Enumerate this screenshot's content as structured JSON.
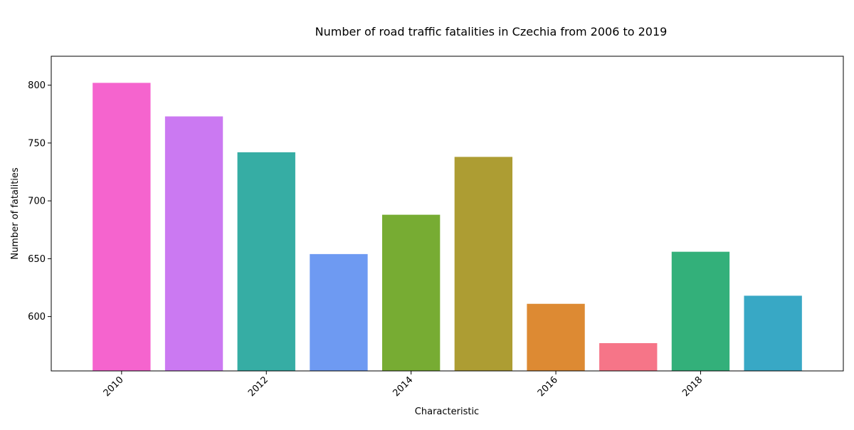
{
  "chart_data": {
    "type": "bar",
    "title": "Number of road traffic fatalities in Czechia from 2006 to 2019",
    "xlabel": "Characteristic",
    "ylabel": "Number of fatalities",
    "categories": [
      "2010",
      "2011",
      "2012",
      "2013",
      "2014",
      "2015",
      "2016",
      "2017",
      "2018",
      "2019"
    ],
    "values": [
      802,
      773,
      742,
      654,
      688,
      738,
      611,
      577,
      656,
      618
    ],
    "colors": [
      "#f564ce",
      "#cb79f2",
      "#36ada4",
      "#6e9af2",
      "#77ac33",
      "#ad9d33",
      "#dd8a33",
      "#f67588",
      "#33b07a",
      "#38a8c5"
    ],
    "x_ticks": [
      "2010",
      "2012",
      "2014",
      "2016",
      "2018"
    ],
    "y_ticks": [
      600,
      650,
      700,
      750,
      800
    ],
    "ylim": [
      553,
      825
    ],
    "grid": false,
    "legend": "none"
  }
}
